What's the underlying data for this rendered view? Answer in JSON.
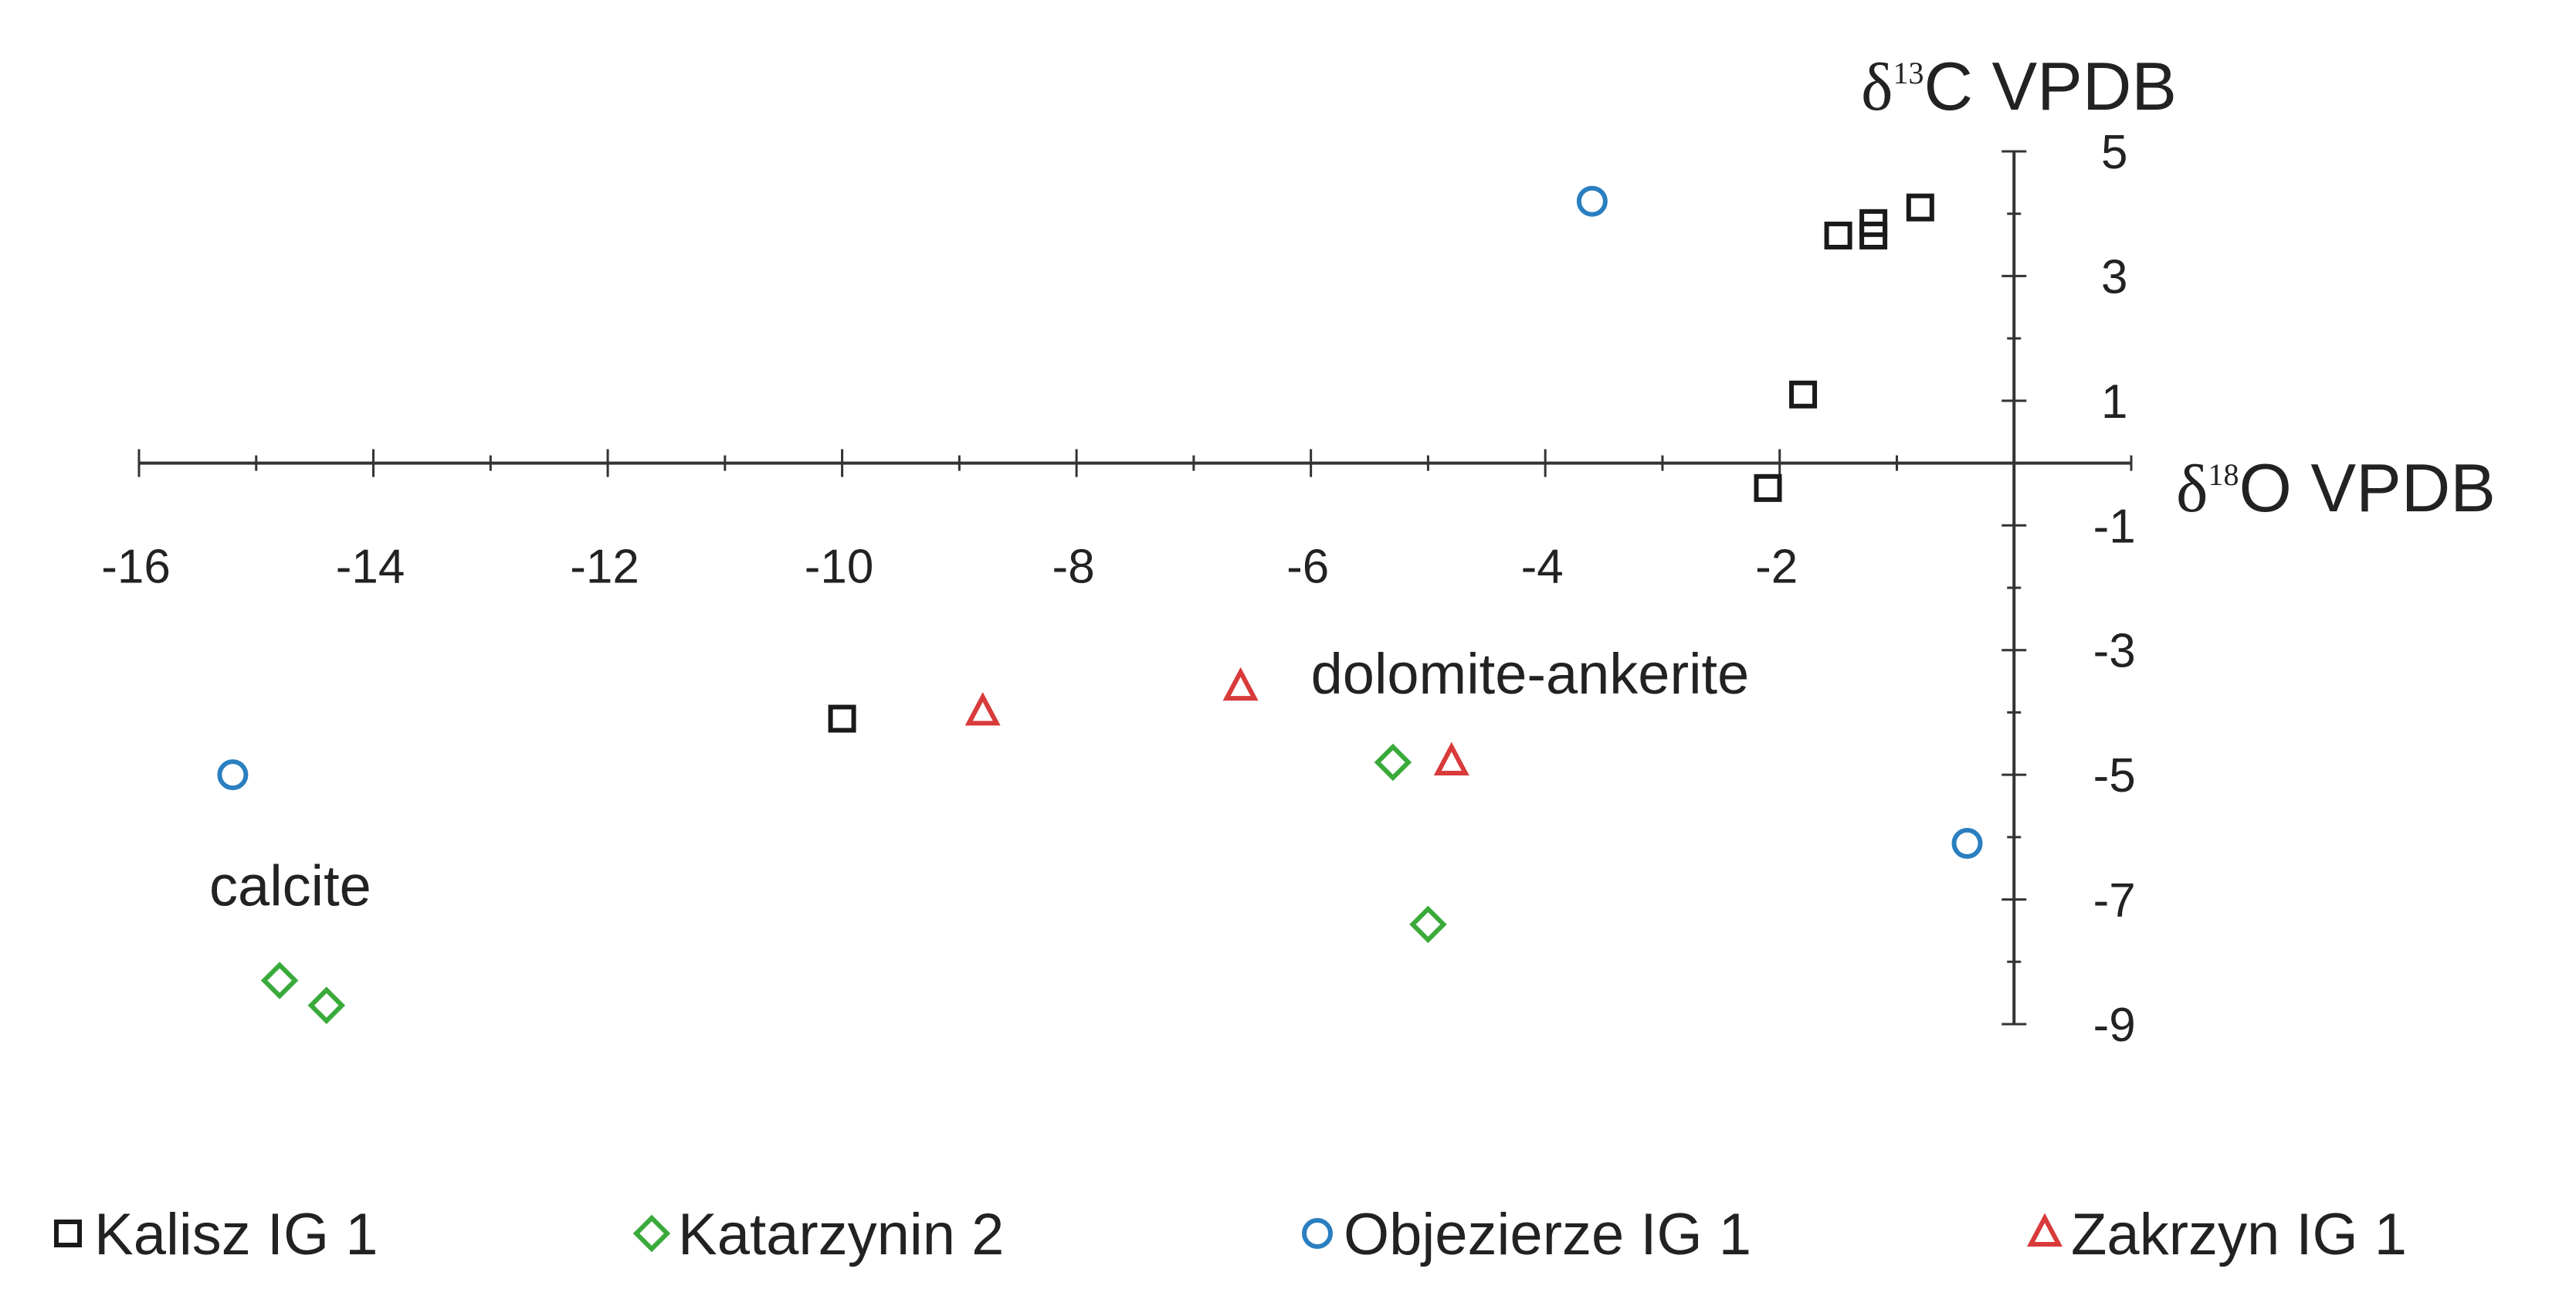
{
  "chart_data": {
    "type": "scatter",
    "xlabel": {
      "prefix": "δ",
      "sup": "18",
      "main": "O VPDB"
    },
    "ylabel": {
      "prefix": "δ",
      "sup": "13",
      "main": "C VPDB"
    },
    "xlim": [
      -16,
      1
    ],
    "ylim": [
      -9,
      5
    ],
    "x_ticks": [
      -16,
      -14,
      -12,
      -10,
      -8,
      -6,
      -4,
      -2
    ],
    "y_ticks": [
      5,
      3,
      1,
      -1,
      -3,
      -5,
      -7,
      -9
    ],
    "grid": false,
    "legend_position": "bottom",
    "annotations": [
      {
        "text": "calcite",
        "x": -15.4,
        "y": -7.1
      },
      {
        "text": "dolomite-ankerite",
        "x": -6,
        "y": -3.7
      }
    ],
    "series": [
      {
        "name": "Kalisz IG 1",
        "marker": "square",
        "color": "#1a1a1a",
        "points": [
          {
            "x": -0.8,
            "y": 4.1
          },
          {
            "x": -1.2,
            "y": 3.85
          },
          {
            "x": -1.2,
            "y": 3.65
          },
          {
            "x": -1.5,
            "y": 3.65
          },
          {
            "x": -1.8,
            "y": 1.1
          },
          {
            "x": -2.1,
            "y": -0.4
          },
          {
            "x": -10.0,
            "y": -4.1
          }
        ]
      },
      {
        "name": "Katarzynin 2",
        "marker": "diamond",
        "color": "#3aaa3a",
        "points": [
          {
            "x": -5.3,
            "y": -4.8
          },
          {
            "x": -5.0,
            "y": -7.4
          },
          {
            "x": -14.8,
            "y": -8.3
          },
          {
            "x": -14.4,
            "y": -8.7
          }
        ]
      },
      {
        "name": "Objezierze IG 1",
        "marker": "circle",
        "color": "#2a7fc0",
        "points": [
          {
            "x": -3.6,
            "y": 4.2
          },
          {
            "x": -15.2,
            "y": -5.0
          },
          {
            "x": -0.4,
            "y": -6.1
          }
        ]
      },
      {
        "name": "Zakrzyn IG 1",
        "marker": "triangle",
        "color": "#d93a3a",
        "points": [
          {
            "x": -8.8,
            "y": -4.0
          },
          {
            "x": -6.6,
            "y": -3.6
          },
          {
            "x": -4.8,
            "y": -4.8
          }
        ]
      }
    ]
  }
}
